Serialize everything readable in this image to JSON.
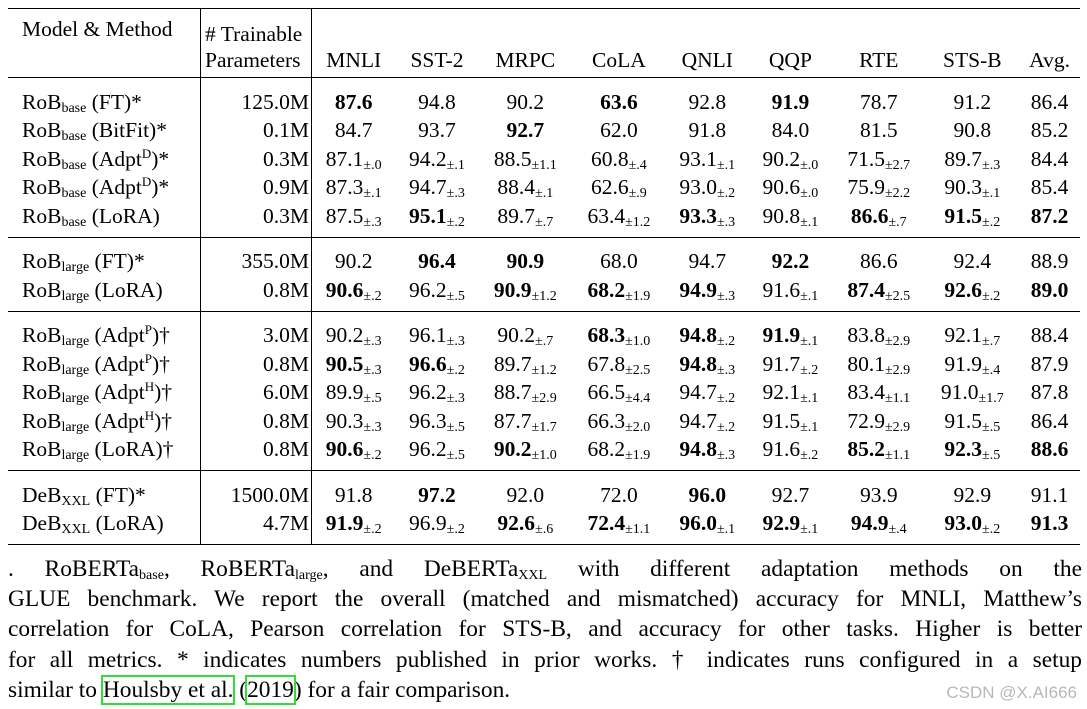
{
  "table": {
    "header": {
      "model_method": "Model & Method",
      "params_line1": "# Trainable",
      "params_line2": "Parameters",
      "columns": [
        "MNLI",
        "SST-2",
        "MRPC",
        "CoLA",
        "QNLI",
        "QQP",
        "RTE",
        "STS-B",
        "Avg."
      ]
    },
    "groups": [
      {
        "rows": [
          {
            "base": "RoB",
            "sub": "base",
            "method_pre": " (FT)*",
            "sup": "",
            "method_post": "",
            "params": "125.0M",
            "cells": [
              {
                "v": "87.6",
                "b": true,
                "s": ""
              },
              {
                "v": "94.8",
                "b": false,
                "s": ""
              },
              {
                "v": "90.2",
                "b": false,
                "s": ""
              },
              {
                "v": "63.6",
                "b": true,
                "s": ""
              },
              {
                "v": "92.8",
                "b": false,
                "s": ""
              },
              {
                "v": "91.9",
                "b": true,
                "s": ""
              },
              {
                "v": "78.7",
                "b": false,
                "s": ""
              },
              {
                "v": "91.2",
                "b": false,
                "s": ""
              },
              {
                "v": "86.4",
                "b": false,
                "s": ""
              }
            ]
          },
          {
            "base": "RoB",
            "sub": "base",
            "method_pre": " (BitFit)*",
            "sup": "",
            "method_post": "",
            "params": "0.1M",
            "cells": [
              {
                "v": "84.7",
                "b": false,
                "s": ""
              },
              {
                "v": "93.7",
                "b": false,
                "s": ""
              },
              {
                "v": "92.7",
                "b": true,
                "s": ""
              },
              {
                "v": "62.0",
                "b": false,
                "s": ""
              },
              {
                "v": "91.8",
                "b": false,
                "s": ""
              },
              {
                "v": "84.0",
                "b": false,
                "s": ""
              },
              {
                "v": "81.5",
                "b": false,
                "s": ""
              },
              {
                "v": "90.8",
                "b": false,
                "s": ""
              },
              {
                "v": "85.2",
                "b": false,
                "s": ""
              }
            ]
          },
          {
            "base": "RoB",
            "sub": "base",
            "method_pre": " (Adpt",
            "sup": "D",
            "method_post": ")*",
            "params": "0.3M",
            "cells": [
              {
                "v": "87.1",
                "b": false,
                "s": "±.0"
              },
              {
                "v": "94.2",
                "b": false,
                "s": "±.1"
              },
              {
                "v": "88.5",
                "b": false,
                "s": "±1.1"
              },
              {
                "v": "60.8",
                "b": false,
                "s": "±.4"
              },
              {
                "v": "93.1",
                "b": false,
                "s": "±.1"
              },
              {
                "v": "90.2",
                "b": false,
                "s": "±.0"
              },
              {
                "v": "71.5",
                "b": false,
                "s": "±2.7"
              },
              {
                "v": "89.7",
                "b": false,
                "s": "±.3"
              },
              {
                "v": "84.4",
                "b": false,
                "s": ""
              }
            ]
          },
          {
            "base": "RoB",
            "sub": "base",
            "method_pre": " (Adpt",
            "sup": "D",
            "method_post": ")*",
            "params": "0.9M",
            "cells": [
              {
                "v": "87.3",
                "b": false,
                "s": "±.1"
              },
              {
                "v": "94.7",
                "b": false,
                "s": "±.3"
              },
              {
                "v": "88.4",
                "b": false,
                "s": "±.1"
              },
              {
                "v": "62.6",
                "b": false,
                "s": "±.9"
              },
              {
                "v": "93.0",
                "b": false,
                "s": "±.2"
              },
              {
                "v": "90.6",
                "b": false,
                "s": "±.0"
              },
              {
                "v": "75.9",
                "b": false,
                "s": "±2.2"
              },
              {
                "v": "90.3",
                "b": false,
                "s": "±.1"
              },
              {
                "v": "85.4",
                "b": false,
                "s": ""
              }
            ]
          },
          {
            "base": "RoB",
            "sub": "base",
            "method_pre": " (LoRA)",
            "sup": "",
            "method_post": "",
            "params": "0.3M",
            "cells": [
              {
                "v": "87.5",
                "b": false,
                "s": "±.3"
              },
              {
                "v": "95.1",
                "b": true,
                "s": "±.2"
              },
              {
                "v": "89.7",
                "b": false,
                "s": "±.7"
              },
              {
                "v": "63.4",
                "b": false,
                "s": "±1.2"
              },
              {
                "v": "93.3",
                "b": true,
                "s": "±.3"
              },
              {
                "v": "90.8",
                "b": false,
                "s": "±.1"
              },
              {
                "v": "86.6",
                "b": true,
                "s": "±.7"
              },
              {
                "v": "91.5",
                "b": true,
                "s": "±.2"
              },
              {
                "v": "87.2",
                "b": true,
                "s": ""
              }
            ]
          }
        ]
      },
      {
        "rows": [
          {
            "base": "RoB",
            "sub": "large",
            "method_pre": " (FT)*",
            "sup": "",
            "method_post": "",
            "params": "355.0M",
            "cells": [
              {
                "v": "90.2",
                "b": false,
                "s": ""
              },
              {
                "v": "96.4",
                "b": true,
                "s": ""
              },
              {
                "v": "90.9",
                "b": true,
                "s": ""
              },
              {
                "v": "68.0",
                "b": false,
                "s": ""
              },
              {
                "v": "94.7",
                "b": false,
                "s": ""
              },
              {
                "v": "92.2",
                "b": true,
                "s": ""
              },
              {
                "v": "86.6",
                "b": false,
                "s": ""
              },
              {
                "v": "92.4",
                "b": false,
                "s": ""
              },
              {
                "v": "88.9",
                "b": false,
                "s": ""
              }
            ]
          },
          {
            "base": "RoB",
            "sub": "large",
            "method_pre": " (LoRA)",
            "sup": "",
            "method_post": "",
            "params": "0.8M",
            "cells": [
              {
                "v": "90.6",
                "b": true,
                "s": "±.2"
              },
              {
                "v": "96.2",
                "b": false,
                "s": "±.5"
              },
              {
                "v": "90.9",
                "b": true,
                "s": "±1.2"
              },
              {
                "v": "68.2",
                "b": true,
                "s": "±1.9"
              },
              {
                "v": "94.9",
                "b": true,
                "s": "±.3"
              },
              {
                "v": "91.6",
                "b": false,
                "s": "±.1"
              },
              {
                "v": "87.4",
                "b": true,
                "s": "±2.5"
              },
              {
                "v": "92.6",
                "b": true,
                "s": "±.2"
              },
              {
                "v": "89.0",
                "b": true,
                "s": ""
              }
            ]
          }
        ]
      },
      {
        "rows": [
          {
            "base": "RoB",
            "sub": "large",
            "method_pre": " (Adpt",
            "sup": "P",
            "method_post": ")†",
            "params": "3.0M",
            "cells": [
              {
                "v": "90.2",
                "b": false,
                "s": "±.3"
              },
              {
                "v": "96.1",
                "b": false,
                "s": "±.3"
              },
              {
                "v": "90.2",
                "b": false,
                "s": "±.7"
              },
              {
                "v": "68.3",
                "b": true,
                "s": "±1.0"
              },
              {
                "v": "94.8",
                "b": true,
                "s": "±.2"
              },
              {
                "v": "91.9",
                "b": true,
                "s": "±.1"
              },
              {
                "v": "83.8",
                "b": false,
                "s": "±2.9"
              },
              {
                "v": "92.1",
                "b": false,
                "s": "±.7"
              },
              {
                "v": "88.4",
                "b": false,
                "s": ""
              }
            ]
          },
          {
            "base": "RoB",
            "sub": "large",
            "method_pre": " (Adpt",
            "sup": "P",
            "method_post": ")†",
            "params": "0.8M",
            "cells": [
              {
                "v": "90.5",
                "b": true,
                "s": "±.3"
              },
              {
                "v": "96.6",
                "b": true,
                "s": "±.2"
              },
              {
                "v": "89.7",
                "b": false,
                "s": "±1.2"
              },
              {
                "v": "67.8",
                "b": false,
                "s": "±2.5"
              },
              {
                "v": "94.8",
                "b": true,
                "s": "±.3"
              },
              {
                "v": "91.7",
                "b": false,
                "s": "±.2"
              },
              {
                "v": "80.1",
                "b": false,
                "s": "±2.9"
              },
              {
                "v": "91.9",
                "b": false,
                "s": "±.4"
              },
              {
                "v": "87.9",
                "b": false,
                "s": ""
              }
            ]
          },
          {
            "base": "RoB",
            "sub": "large",
            "method_pre": " (Adpt",
            "sup": "H",
            "method_post": ")†",
            "params": "6.0M",
            "cells": [
              {
                "v": "89.9",
                "b": false,
                "s": "±.5"
              },
              {
                "v": "96.2",
                "b": false,
                "s": "±.3"
              },
              {
                "v": "88.7",
                "b": false,
                "s": "±2.9"
              },
              {
                "v": "66.5",
                "b": false,
                "s": "±4.4"
              },
              {
                "v": "94.7",
                "b": false,
                "s": "±.2"
              },
              {
                "v": "92.1",
                "b": false,
                "s": "±.1"
              },
              {
                "v": "83.4",
                "b": false,
                "s": "±1.1"
              },
              {
                "v": "91.0",
                "b": false,
                "s": "±1.7"
              },
              {
                "v": "87.8",
                "b": false,
                "s": ""
              }
            ]
          },
          {
            "base": "RoB",
            "sub": "large",
            "method_pre": " (Adpt",
            "sup": "H",
            "method_post": ")†",
            "params": "0.8M",
            "cells": [
              {
                "v": "90.3",
                "b": false,
                "s": "±.3"
              },
              {
                "v": "96.3",
                "b": false,
                "s": "±.5"
              },
              {
                "v": "87.7",
                "b": false,
                "s": "±1.7"
              },
              {
                "v": "66.3",
                "b": false,
                "s": "±2.0"
              },
              {
                "v": "94.7",
                "b": false,
                "s": "±.2"
              },
              {
                "v": "91.5",
                "b": false,
                "s": "±.1"
              },
              {
                "v": "72.9",
                "b": false,
                "s": "±2.9"
              },
              {
                "v": "91.5",
                "b": false,
                "s": "±.5"
              },
              {
                "v": "86.4",
                "b": false,
                "s": ""
              }
            ]
          },
          {
            "base": "RoB",
            "sub": "large",
            "method_pre": " (LoRA)†",
            "sup": "",
            "method_post": "",
            "params": "0.8M",
            "cells": [
              {
                "v": "90.6",
                "b": true,
                "s": "±.2"
              },
              {
                "v": "96.2",
                "b": false,
                "s": "±.5"
              },
              {
                "v": "90.2",
                "b": true,
                "s": "±1.0"
              },
              {
                "v": "68.2",
                "b": false,
                "s": "±1.9"
              },
              {
                "v": "94.8",
                "b": true,
                "s": "±.3"
              },
              {
                "v": "91.6",
                "b": false,
                "s": "±.2"
              },
              {
                "v": "85.2",
                "b": true,
                "s": "±1.1"
              },
              {
                "v": "92.3",
                "b": true,
                "s": "±.5"
              },
              {
                "v": "88.6",
                "b": true,
                "s": ""
              }
            ]
          }
        ]
      },
      {
        "rows": [
          {
            "base": "DeB",
            "sub": "XXL",
            "method_pre": " (FT)*",
            "sup": "",
            "method_post": "",
            "params": "1500.0M",
            "cells": [
              {
                "v": "91.8",
                "b": false,
                "s": ""
              },
              {
                "v": "97.2",
                "b": true,
                "s": ""
              },
              {
                "v": "92.0",
                "b": false,
                "s": ""
              },
              {
                "v": "72.0",
                "b": false,
                "s": ""
              },
              {
                "v": "96.0",
                "b": true,
                "s": ""
              },
              {
                "v": "92.7",
                "b": false,
                "s": ""
              },
              {
                "v": "93.9",
                "b": false,
                "s": ""
              },
              {
                "v": "92.9",
                "b": false,
                "s": ""
              },
              {
                "v": "91.1",
                "b": false,
                "s": ""
              }
            ]
          },
          {
            "base": "DeB",
            "sub": "XXL",
            "method_pre": " (LoRA)",
            "sup": "",
            "method_post": "",
            "params": "4.7M",
            "cells": [
              {
                "v": "91.9",
                "b": true,
                "s": "±.2"
              },
              {
                "v": "96.9",
                "b": false,
                "s": "±.2"
              },
              {
                "v": "92.6",
                "b": true,
                "s": "±.6"
              },
              {
                "v": "72.4",
                "b": true,
                "s": "±1.1"
              },
              {
                "v": "96.0",
                "b": true,
                "s": "±.1"
              },
              {
                "v": "92.9",
                "b": true,
                "s": "±.1"
              },
              {
                "v": "94.9",
                "b": true,
                "s": "±.4"
              },
              {
                "v": "93.0",
                "b": true,
                "s": "±.2"
              },
              {
                "v": "91.3",
                "b": true,
                "s": ""
              }
            ]
          }
        ]
      }
    ]
  },
  "caption": {
    "l1_a": ". RoBERTa",
    "l1_sub1": "base",
    "l1_b": ", RoBERTa",
    "l1_sub2": "large",
    "l1_c": ", and DeBERTa",
    "l1_sub3": "XXL",
    "l1_d": " with different adaptation methods on the",
    "l2": "GLUE benchmark. We report the overall (matched and mismatched) accuracy for MNLI, Matthew’s",
    "l3": "correlation for CoLA, Pearson correlation for STS-B, and accuracy for other tasks. Higher is better",
    "l4": "for all metrics. * indicates numbers published in prior works. † indicates runs configured in a setup",
    "l5_a": "similar to ",
    "l5_cite_author": "Houlsby et al.",
    "l5_b": " (",
    "l5_cite_year": "2019",
    "l5_c": ") for a fair comparison."
  },
  "watermark": "CSDN @X.AI666",
  "colors": {
    "citation_box": "#33dd33",
    "watermark": "#b8b8b8"
  }
}
